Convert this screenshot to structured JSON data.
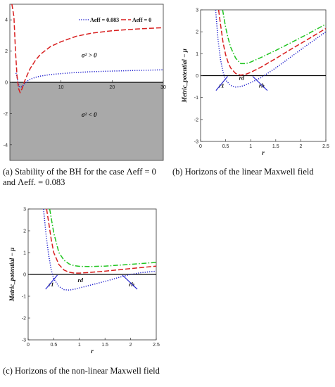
{
  "captions": {
    "a": "(a)   Stability of the BH for the case Λeff = 0 and Λeff. = 0.083",
    "b": "(b)  Horizons of the linear Maxwell field",
    "c": "(c)  Horizons of the non-linear Maxwell field"
  },
  "chart_data": [
    {
      "id": "a",
      "type": "line",
      "title": "",
      "xlabel": "",
      "ylabel": "",
      "xlim": [
        0,
        30
      ],
      "ylim": [
        -5,
        5
      ],
      "x_ticks": [
        10,
        20,
        30
      ],
      "y_ticks": [
        -4,
        -2,
        0,
        2,
        4
      ],
      "grid": false,
      "legend": "top-right",
      "shaded_region": {
        "y_from": -5,
        "y_to": 0,
        "color": "#a9a9a9"
      },
      "annotations": [
        {
          "text": "σ² > 0",
          "x": 15.5,
          "y": 1.6
        },
        {
          "text": "σ² < 0",
          "x": 15.5,
          "y": -2.2
        }
      ],
      "series": [
        {
          "name": "Λeff = 0.083",
          "color": "#1a1acc",
          "style": "dotted",
          "x": [
            1.2,
            1.5,
            1.8,
            2.2,
            2.6,
            3,
            3.5,
            4,
            5,
            6,
            8,
            10,
            13,
            16,
            20,
            25,
            30
          ],
          "y": [
            0.6,
            0.2,
            -0.25,
            -0.3,
            -0.2,
            -0.05,
            0.1,
            0.2,
            0.32,
            0.4,
            0.5,
            0.56,
            0.63,
            0.68,
            0.72,
            0.76,
            0.8
          ]
        },
        {
          "name": "Λeff = 0",
          "color": "#d81e1e",
          "style": "dashed",
          "x": [
            0.4,
            0.8,
            1.1,
            1.4,
            1.7,
            2.0,
            2.4,
            2.8,
            3.3,
            4,
            5,
            6,
            8,
            10,
            13,
            16,
            20,
            25,
            30
          ],
          "y": [
            5,
            4.2,
            2.0,
            0.4,
            -0.4,
            -0.65,
            -0.4,
            0.0,
            0.4,
            0.9,
            1.4,
            1.8,
            2.3,
            2.6,
            2.95,
            3.15,
            3.3,
            3.42,
            3.5
          ]
        }
      ]
    },
    {
      "id": "b",
      "type": "line",
      "title": "",
      "xlabel": "r",
      "ylabel": "Metric_potential − μ",
      "xlim": [
        0,
        2.5
      ],
      "ylim": [
        -3,
        3
      ],
      "x_ticks": [
        0,
        0.5,
        1,
        1.5,
        2,
        2.5
      ],
      "y_ticks": [
        -3,
        -2,
        -1,
        0,
        1,
        2,
        3
      ],
      "grid": false,
      "annotations": [
        {
          "text": "r1",
          "x": 0.42,
          "y": -0.55,
          "color": "#1a1acc"
        },
        {
          "text": "rd",
          "x": 0.82,
          "y": -0.2,
          "color": "#d81e1e"
        },
        {
          "text": "rh",
          "x": 1.22,
          "y": -0.55,
          "color": "#1a1acc"
        }
      ],
      "series": [
        {
          "color": "#1a1acc",
          "style": "dotted",
          "x": [
            0.3,
            0.35,
            0.4,
            0.45,
            0.5,
            0.6,
            0.7,
            0.8,
            0.9,
            1.0,
            1.2,
            1.5,
            1.8,
            2.1,
            2.5
          ],
          "y": [
            3,
            1.6,
            0.7,
            0.15,
            -0.2,
            -0.45,
            -0.52,
            -0.5,
            -0.42,
            -0.32,
            -0.1,
            0.35,
            0.85,
            1.35,
            2.0
          ]
        },
        {
          "color": "#d81e1e",
          "style": "dashed",
          "x": [
            0.36,
            0.4,
            0.45,
            0.5,
            0.55,
            0.6,
            0.7,
            0.8,
            0.9,
            1.0,
            1.2,
            1.5,
            1.8,
            2.1,
            2.5
          ],
          "y": [
            3,
            2.3,
            1.5,
            0.95,
            0.6,
            0.35,
            0.1,
            0.02,
            0.06,
            0.15,
            0.38,
            0.78,
            1.2,
            1.6,
            2.15
          ]
        },
        {
          "color": "#1fc41f",
          "style": "dash-dot",
          "x": [
            0.44,
            0.5,
            0.55,
            0.6,
            0.7,
            0.8,
            0.9,
            1.0,
            1.2,
            1.5,
            1.8,
            2.1,
            2.5
          ],
          "y": [
            3,
            2.2,
            1.7,
            1.3,
            0.8,
            0.55,
            0.55,
            0.62,
            0.82,
            1.15,
            1.5,
            1.85,
            2.35
          ]
        }
      ]
    },
    {
      "id": "c",
      "type": "line",
      "title": "",
      "xlabel": "r",
      "ylabel": "Metric_potential − μ",
      "xlim": [
        0,
        2.5
      ],
      "ylim": [
        -3,
        3
      ],
      "x_ticks": [
        0,
        0.5,
        1,
        1.5,
        2,
        2.5
      ],
      "y_ticks": [
        -3,
        -2,
        -1,
        0,
        1,
        2,
        3
      ],
      "grid": false,
      "annotations": [
        {
          "text": "r1",
          "x": 0.45,
          "y": -0.55,
          "color": "#1a1acc"
        },
        {
          "text": "rd",
          "x": 1.02,
          "y": -0.35,
          "color": "#d81e1e"
        },
        {
          "text": "rh",
          "x": 2.02,
          "y": -0.55,
          "color": "#1a1acc"
        }
      ],
      "series": [
        {
          "color": "#1a1acc",
          "style": "dotted",
          "x": [
            0.3,
            0.35,
            0.4,
            0.45,
            0.5,
            0.6,
            0.7,
            0.8,
            0.9,
            1.0,
            1.2,
            1.5,
            1.8,
            2.0,
            2.2,
            2.5
          ],
          "y": [
            3,
            1.8,
            0.9,
            0.2,
            -0.2,
            -0.55,
            -0.7,
            -0.72,
            -0.68,
            -0.62,
            -0.5,
            -0.32,
            -0.12,
            0.0,
            0.08,
            0.15
          ]
        },
        {
          "color": "#d81e1e",
          "style": "dashed",
          "x": [
            0.36,
            0.4,
            0.45,
            0.5,
            0.6,
            0.7,
            0.8,
            0.9,
            1.0,
            1.2,
            1.5,
            1.8,
            2.1,
            2.5
          ],
          "y": [
            3,
            2.4,
            1.6,
            1.0,
            0.45,
            0.2,
            0.1,
            0.06,
            0.06,
            0.09,
            0.15,
            0.22,
            0.29,
            0.38
          ]
        },
        {
          "color": "#1fc41f",
          "style": "dash-dot",
          "x": [
            0.42,
            0.5,
            0.6,
            0.7,
            0.8,
            0.9,
            1.0,
            1.2,
            1.5,
            1.8,
            2.1,
            2.5
          ],
          "y": [
            3,
            1.9,
            1.0,
            0.65,
            0.48,
            0.4,
            0.37,
            0.36,
            0.38,
            0.43,
            0.48,
            0.55
          ]
        }
      ]
    }
  ]
}
